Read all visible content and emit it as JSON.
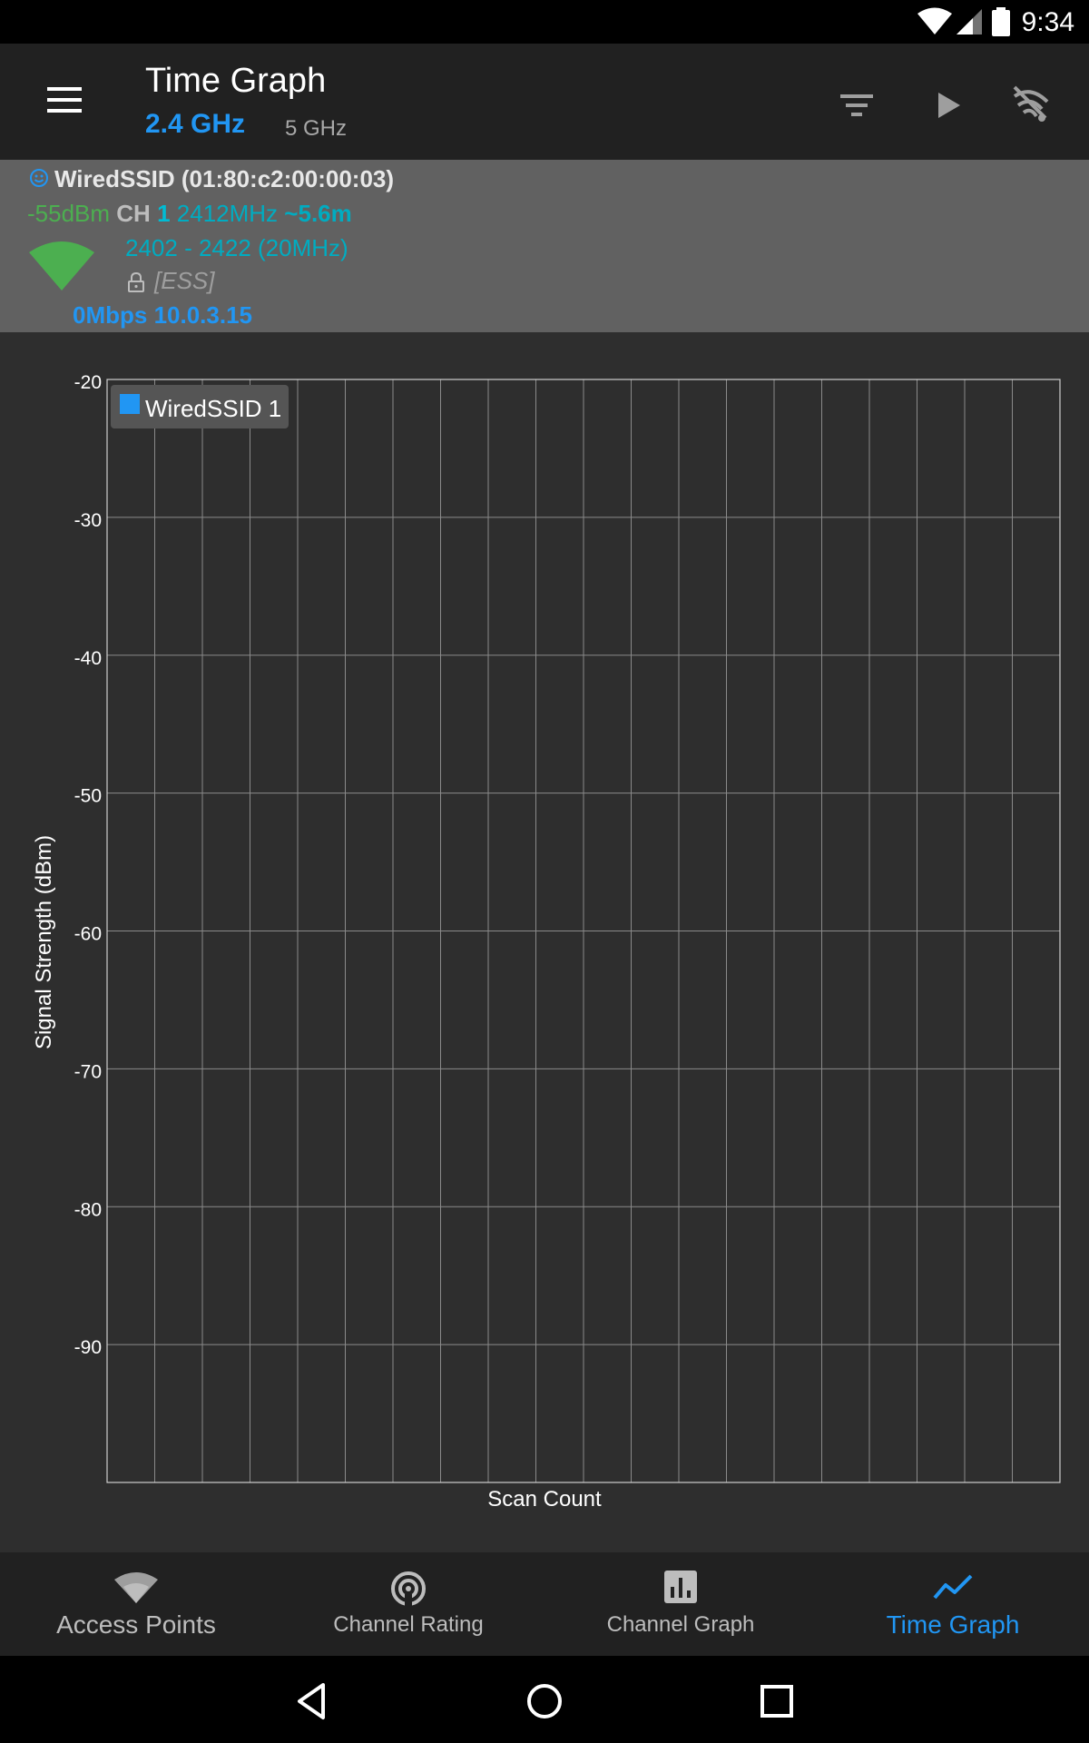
{
  "status_bar": {
    "time": "9:34"
  },
  "app_bar": {
    "title": "Time Graph",
    "band_active": "2.4 GHz",
    "band_inactive": "5 GHz"
  },
  "access_point": {
    "ssid_line": "WiredSSID (01:80:c2:00:00:03)",
    "signal": "-55dBm",
    "channel_label": "CH",
    "channel": "1",
    "frequency": "2412MHz",
    "distance": "~5.6m",
    "range": "2402 - 2422 (20MHz)",
    "capabilities": "[ESS]",
    "rate_ip": "0Mbps 10.0.3.15"
  },
  "colors": {
    "accent": "#2196f3",
    "signal_green": "#4caf50",
    "channel_cyan": "#00acc1"
  },
  "chart_data": {
    "type": "line",
    "title": "",
    "xlabel": "Scan Count",
    "ylabel": "Signal Strength (dBm)",
    "ylim": [
      -100,
      -20
    ],
    "y_ticks": [
      "-20",
      "-30",
      "-40",
      "-50",
      "-60",
      "-70",
      "-80",
      "-90"
    ],
    "grid": true,
    "legend_placement": "top-left",
    "series": [
      {
        "name": "WiredSSID 1",
        "color": "#2196f3",
        "values": []
      }
    ]
  },
  "bottom_nav": {
    "items": [
      {
        "label": "Access Points",
        "icon": "wifi-icon"
      },
      {
        "label": "Channel Rating",
        "icon": "channel-rating-icon"
      },
      {
        "label": "Channel Graph",
        "icon": "bar-chart-icon"
      },
      {
        "label": "Time Graph",
        "icon": "timeline-icon",
        "active": true
      }
    ]
  }
}
